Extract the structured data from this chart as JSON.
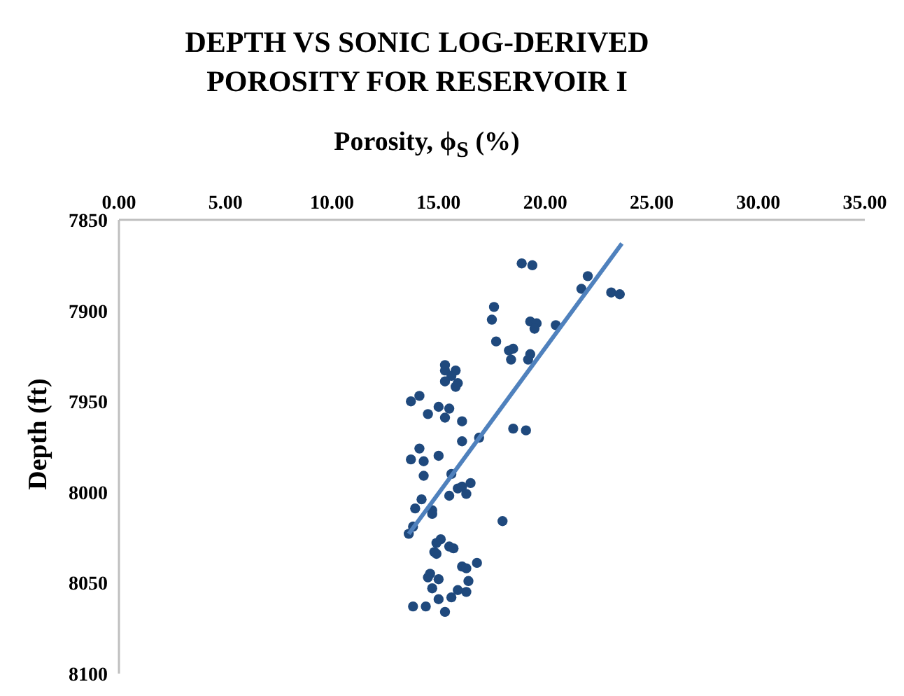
{
  "chart_data": {
    "type": "scatter",
    "title": "DEPTH VS SONIC LOG-DERIVED\nPOROSITY FOR RESERVOIR I",
    "xlabel": "Porosity, ϕ$_{S}$ (%)",
    "ylabel": "Depth (ft)",
    "xlim": [
      0,
      35
    ],
    "xticks": [
      {
        "value": 0,
        "label": "0.00"
      },
      {
        "value": 5,
        "label": "5.00"
      },
      {
        "value": 10,
        "label": "10.00"
      },
      {
        "value": 15,
        "label": "15.00"
      },
      {
        "value": 20,
        "label": "20.00"
      },
      {
        "value": 25,
        "label": "25.00"
      },
      {
        "value": 30,
        "label": "30.00"
      },
      {
        "value": 35,
        "label": "35.00"
      }
    ],
    "ylim": [
      8100,
      7850
    ],
    "yticks": [
      7850,
      7900,
      7950,
      8000,
      8050,
      8100
    ],
    "series": [
      {
        "color": "#1f497d",
        "marker": "circle",
        "x": [
          18.9,
          19.4,
          22.0,
          21.7,
          23.1,
          23.5,
          17.6,
          17.5,
          19.3,
          19.6,
          19.5,
          20.5,
          17.7,
          18.3,
          18.5,
          18.4,
          19.3,
          19.2,
          15.3,
          15.3,
          15.8,
          15.6,
          15.3,
          15.9,
          15.8,
          14.1,
          13.7,
          15.0,
          15.5,
          14.5,
          15.3,
          16.1,
          18.5,
          19.1,
          16.1,
          16.9,
          14.1,
          13.7,
          14.3,
          15.0,
          14.3,
          15.6,
          15.9,
          16.1,
          16.5,
          16.3,
          15.5,
          14.2,
          13.9,
          14.7,
          14.7,
          13.8,
          13.6,
          18.0,
          15.1,
          14.9,
          14.8,
          15.5,
          15.7,
          14.9,
          16.8,
          16.1,
          16.3,
          14.6,
          14.5,
          15.0,
          16.4,
          14.7,
          15.9,
          16.3,
          15.6,
          15.0,
          13.8,
          14.4,
          15.3
        ],
        "values": [
          7874,
          7875,
          7881,
          7888,
          7890,
          7891,
          7898,
          7905,
          7906,
          7907,
          7910,
          7908,
          7917,
          7922,
          7921,
          7927,
          7924,
          7927,
          7930,
          7933,
          7933,
          7936,
          7939,
          7940,
          7942,
          7947,
          7950,
          7953,
          7954,
          7957,
          7959,
          7961,
          7965,
          7966,
          7972,
          7970,
          7976,
          7982,
          7983,
          7980,
          7991,
          7990,
          7998,
          7997,
          7995,
          8001,
          8002,
          8004,
          8009,
          8010,
          8012,
          8019,
          8023,
          8016,
          8026,
          8028,
          8033,
          8030,
          8031,
          8034,
          8039,
          8041,
          8042,
          8045,
          8047,
          8048,
          8049,
          8053,
          8054,
          8055,
          8058,
          8059,
          8063,
          8063,
          8066
        ]
      },
      {
        "type": "line",
        "color": "#4f81bd",
        "marker": "none",
        "line_style": "solid",
        "x": [
          13.6,
          23.6
        ],
        "values": [
          8023,
          7863
        ]
      }
    ]
  }
}
